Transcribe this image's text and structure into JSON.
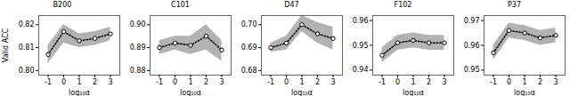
{
  "chart_data": [
    {
      "type": "line",
      "title": "B200",
      "x": [
        -1,
        0,
        1,
        2,
        3
      ],
      "values": [
        0.807,
        0.817,
        0.813,
        0.814,
        0.816
      ],
      "lower": [
        0.803,
        0.812,
        0.81,
        0.811,
        0.813
      ],
      "upper": [
        0.811,
        0.82,
        0.816,
        0.817,
        0.819
      ],
      "xlim": [
        -1.6,
        3.6
      ],
      "xticks": [
        -1,
        0,
        1,
        2,
        3
      ],
      "ylim": [
        0.798,
        0.824
      ],
      "yticks": [
        {
          "value": 0.8,
          "label": "0.80"
        },
        {
          "value": 0.81,
          "label": "0.81"
        },
        {
          "value": 0.82,
          "label": "0.82"
        }
      ],
      "xlabel": "log₁₀α",
      "ylabel": "Valid ACC",
      "marker": "circle",
      "line_style": "dotted"
    },
    {
      "type": "line",
      "title": "C101",
      "x": [
        -1,
        0,
        1,
        2,
        3
      ],
      "values": [
        0.89,
        0.892,
        0.891,
        0.895,
        0.889
      ],
      "lower": [
        0.887,
        0.889,
        0.887,
        0.889,
        0.884
      ],
      "upper": [
        0.893,
        0.895,
        0.895,
        0.9,
        0.893
      ],
      "xlim": [
        -1.6,
        3.6
      ],
      "xticks": [
        -1,
        0,
        1,
        2,
        3
      ],
      "ylim": [
        0.878,
        0.904
      ],
      "yticks": [
        {
          "value": 0.88,
          "label": "0.88"
        },
        {
          "value": 0.89,
          "label": "0.89"
        },
        {
          "value": 0.9,
          "label": "0.90"
        }
      ],
      "xlabel": "log₁₀α",
      "marker": "circle",
      "line_style": "dotted"
    },
    {
      "type": "line",
      "title": "D47",
      "x": [
        -1,
        0,
        1,
        2,
        3
      ],
      "values": [
        0.69,
        0.692,
        0.7,
        0.696,
        0.694
      ],
      "lower": [
        0.688,
        0.689,
        0.697,
        0.692,
        0.689
      ],
      "upper": [
        0.692,
        0.695,
        0.704,
        0.701,
        0.699
      ],
      "xlim": [
        -1.6,
        3.6
      ],
      "xticks": [
        -1,
        0,
        1,
        2,
        3
      ],
      "ylim": [
        0.678,
        0.704
      ],
      "yticks": [
        {
          "value": 0.68,
          "label": "0.68"
        },
        {
          "value": 0.69,
          "label": "0.69"
        },
        {
          "value": 0.7,
          "label": "0.70"
        }
      ],
      "xlabel": "log₁₀α",
      "marker": "circle",
      "line_style": "dotted"
    },
    {
      "type": "line",
      "title": "F102",
      "x": [
        -1,
        0,
        1,
        2,
        3
      ],
      "values": [
        0.946,
        0.951,
        0.952,
        0.951,
        0.951
      ],
      "lower": [
        0.943,
        0.948,
        0.949,
        0.948,
        0.948
      ],
      "upper": [
        0.949,
        0.954,
        0.955,
        0.954,
        0.954
      ],
      "xlim": [
        -1.6,
        3.6
      ],
      "xticks": [
        -1,
        0,
        1,
        2,
        3
      ],
      "ylim": [
        0.938,
        0.962
      ],
      "yticks": [
        {
          "value": 0.94,
          "label": "0.94"
        },
        {
          "value": 0.95,
          "label": "0.95"
        },
        {
          "value": 0.96,
          "label": "0.96"
        }
      ],
      "xlabel": "log₁₀α",
      "marker": "circle",
      "line_style": "dotted"
    },
    {
      "type": "line",
      "title": "P37",
      "x": [
        -1,
        0,
        1,
        2,
        3
      ],
      "values": [
        0.957,
        0.966,
        0.965,
        0.963,
        0.964
      ],
      "lower": [
        0.954,
        0.963,
        0.962,
        0.96,
        0.961
      ],
      "upper": [
        0.96,
        0.969,
        0.968,
        0.966,
        0.967
      ],
      "xlim": [
        -1.6,
        3.6
      ],
      "xticks": [
        -1,
        0,
        1,
        2,
        3
      ],
      "ylim": [
        0.948,
        0.972
      ],
      "yticks": [
        {
          "value": 0.95,
          "label": "0.95"
        },
        {
          "value": 0.96,
          "label": "0.96"
        },
        {
          "value": 0.97,
          "label": "0.97"
        }
      ],
      "xlabel": "log₁₀α",
      "marker": "circle",
      "line_style": "dotted"
    }
  ]
}
